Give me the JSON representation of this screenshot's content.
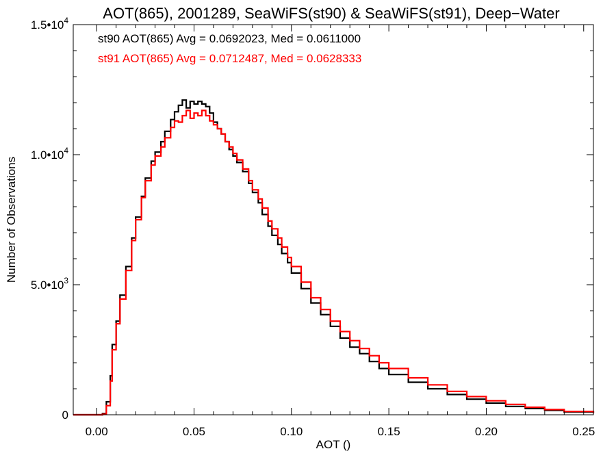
{
  "chart_data": {
    "type": "line",
    "title": "AOT(865), 2001289, SeaWiFS(st90) & SeaWiFS(st91), Deep−Water",
    "xlabel": "AOT ()",
    "ylabel": "Number of Observations",
    "xlim": [
      -0.012,
      0.255
    ],
    "ylim": [
      0,
      15000
    ],
    "x_ticks": [
      {
        "value": 0.0,
        "label": "0.00"
      },
      {
        "value": 0.05,
        "label": "0.05"
      },
      {
        "value": 0.1,
        "label": "0.10"
      },
      {
        "value": 0.15,
        "label": "0.15"
      },
      {
        "value": 0.2,
        "label": "0.20"
      },
      {
        "value": 0.25,
        "label": "0.25"
      }
    ],
    "y_ticks": [
      {
        "value": 0,
        "mantissa": "0",
        "exponent": ""
      },
      {
        "value": 5000,
        "mantissa": "5.0•10",
        "exponent": "3"
      },
      {
        "value": 10000,
        "mantissa": "1.0•10",
        "exponent": "4"
      },
      {
        "value": 15000,
        "mantissa": "1.5•10",
        "exponent": "4"
      }
    ],
    "annotations": [
      {
        "text": "st90 AOT(865) Avg = 0.0692023, Med = 0.0611000",
        "color": "#000000"
      },
      {
        "text": "st91 AOT(865) Avg = 0.0712487, Med = 0.0628333",
        "color": "#ff0000"
      }
    ],
    "series": [
      {
        "color": "#000000",
        "x": [
          -0.012,
          0.0,
          0.003,
          0.005,
          0.007,
          0.008,
          0.01,
          0.012,
          0.015,
          0.018,
          0.02,
          0.023,
          0.025,
          0.028,
          0.03,
          0.033,
          0.035,
          0.038,
          0.04,
          0.042,
          0.044,
          0.046,
          0.048,
          0.05,
          0.052,
          0.054,
          0.056,
          0.058,
          0.06,
          0.062,
          0.064,
          0.066,
          0.068,
          0.07,
          0.072,
          0.075,
          0.078,
          0.08,
          0.083,
          0.085,
          0.088,
          0.09,
          0.093,
          0.095,
          0.098,
          0.1,
          0.105,
          0.11,
          0.115,
          0.12,
          0.125,
          0.13,
          0.135,
          0.14,
          0.145,
          0.15,
          0.16,
          0.17,
          0.18,
          0.19,
          0.2,
          0.21,
          0.22,
          0.23,
          0.24,
          0.255
        ],
        "y": [
          0,
          0,
          50,
          500,
          1500,
          2700,
          3600,
          4600,
          5700,
          6800,
          7600,
          8400,
          9100,
          9750,
          10100,
          10500,
          10900,
          11350,
          11650,
          11900,
          12100,
          11800,
          12050,
          11950,
          12050,
          11950,
          11850,
          11600,
          11250,
          11000,
          10800,
          10500,
          10200,
          9950,
          9700,
          9350,
          8900,
          8550,
          8150,
          7700,
          7250,
          6900,
          6550,
          6200,
          5850,
          5450,
          4850,
          4300,
          3850,
          3400,
          2950,
          2600,
          2350,
          2050,
          1780,
          1550,
          1250,
          1000,
          780,
          600,
          450,
          320,
          240,
          170,
          110,
          60
        ]
      },
      {
        "color": "#ff0000",
        "x": [
          -0.012,
          0.0,
          0.003,
          0.005,
          0.007,
          0.008,
          0.01,
          0.012,
          0.015,
          0.018,
          0.02,
          0.023,
          0.025,
          0.028,
          0.03,
          0.033,
          0.035,
          0.038,
          0.04,
          0.042,
          0.044,
          0.046,
          0.048,
          0.05,
          0.052,
          0.054,
          0.056,
          0.058,
          0.06,
          0.062,
          0.064,
          0.066,
          0.068,
          0.07,
          0.072,
          0.075,
          0.078,
          0.08,
          0.083,
          0.085,
          0.088,
          0.09,
          0.093,
          0.095,
          0.098,
          0.1,
          0.105,
          0.11,
          0.115,
          0.12,
          0.125,
          0.13,
          0.135,
          0.14,
          0.145,
          0.15,
          0.16,
          0.17,
          0.18,
          0.19,
          0.2,
          0.21,
          0.22,
          0.23,
          0.24,
          0.255
        ],
        "y": [
          0,
          0,
          20,
          350,
          1300,
          2500,
          3500,
          4450,
          5550,
          6700,
          7500,
          8350,
          9000,
          9600,
          9950,
          10300,
          10650,
          11050,
          11300,
          11250,
          11500,
          11700,
          11400,
          11600,
          11500,
          11700,
          11500,
          11300,
          11150,
          11000,
          10800,
          10500,
          10300,
          10050,
          9800,
          9450,
          9000,
          8650,
          8300,
          7950,
          7450,
          7150,
          6800,
          6450,
          6050,
          5700,
          5100,
          4500,
          4050,
          3600,
          3200,
          2850,
          2550,
          2270,
          2000,
          1780,
          1420,
          1150,
          900,
          700,
          540,
          400,
          290,
          200,
          130,
          70
        ]
      }
    ]
  }
}
